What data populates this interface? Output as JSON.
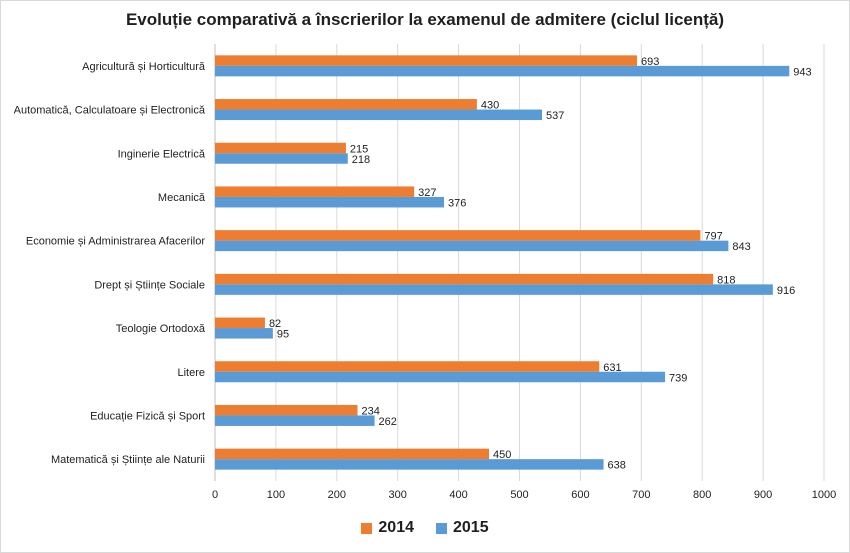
{
  "chart_data": {
    "type": "bar",
    "orientation": "horizontal",
    "title": "Evoluție comparativă a înscrierilor la examenul de admitere (ciclul licență)",
    "categories": [
      "Agricultură și Horticultură",
      "Automatică, Calculatoare și Electronică",
      "Inginerie Electrică",
      "Mecanică",
      "Economie și Administrarea Afacerilor",
      "Drept și Științe Sociale",
      "Teologie Ortodoxă",
      "Litere",
      "Educație Fizică și Sport",
      "Matematică și Științe ale Naturii"
    ],
    "series": [
      {
        "name": "2014",
        "color": "#ed7d31",
        "values": [
          693,
          430,
          215,
          327,
          797,
          818,
          82,
          631,
          234,
          450
        ]
      },
      {
        "name": "2015",
        "color": "#5b9bd5",
        "values": [
          943,
          537,
          218,
          376,
          843,
          916,
          95,
          739,
          262,
          638
        ]
      }
    ],
    "xlim": [
      0,
      1000
    ],
    "ticks": [
      "0",
      "100",
      "200",
      "300",
      "400",
      "500",
      "600",
      "700",
      "800",
      "900",
      "1000"
    ],
    "grid": true,
    "legend_position": "bottom"
  }
}
